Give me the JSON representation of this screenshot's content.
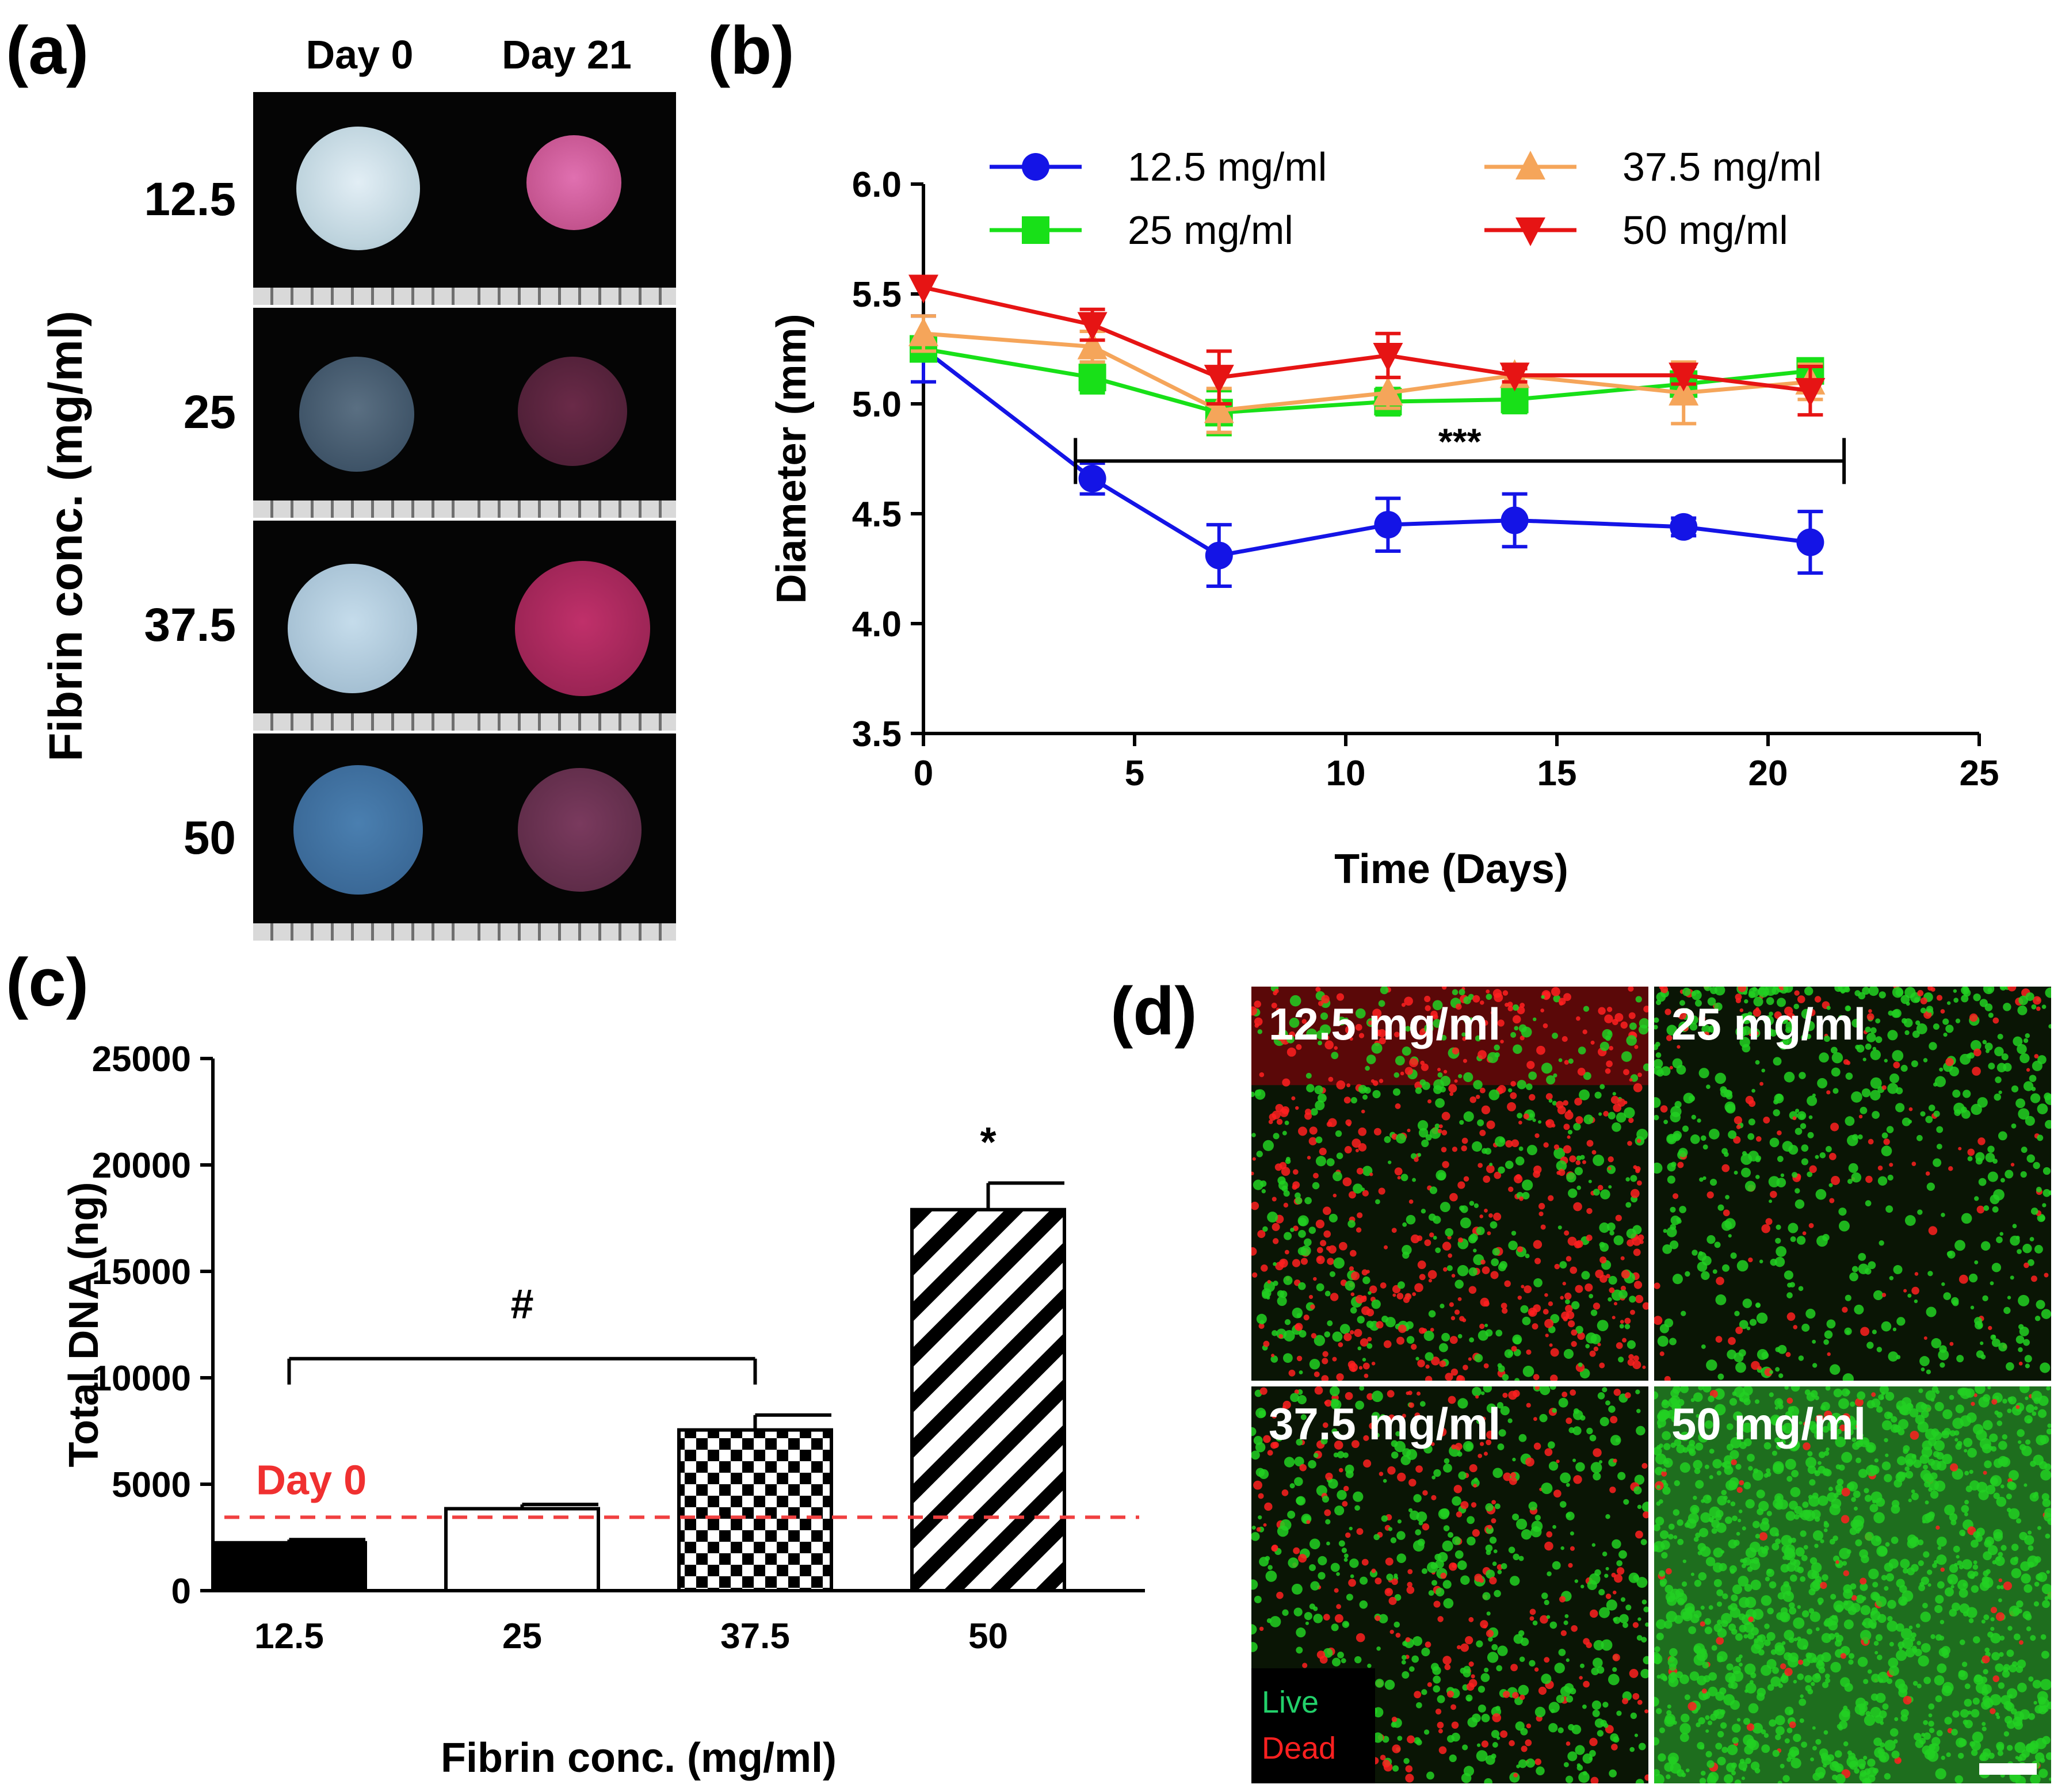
{
  "panels": {
    "a_label": "(a)",
    "b_label": "(b)",
    "c_label": "(c)",
    "d_label": "(d)"
  },
  "panel_a": {
    "col_headers": [
      "Day 0",
      "Day 21"
    ],
    "y_axis_label": "Fibrin conc. (mg/ml)",
    "rows": [
      "12.5",
      "25",
      "37.5",
      "50"
    ],
    "colors": {
      "day0_disk": "#c8d8e0",
      "day21_disk": "#c0508a",
      "background": "#050505",
      "ruler": "#d9d9d9"
    }
  },
  "panel_d": {
    "labels": [
      "12.5 mg/ml",
      "25 mg/ml",
      "37.5 mg/ml",
      "50 mg/ml"
    ],
    "legend_live": "Live",
    "legend_dead": "Dead",
    "colors": {
      "live": "#22d022",
      "dead": "#ff2020"
    }
  },
  "chart_data": [
    {
      "type": "line",
      "title": "",
      "xlabel": "Time (Days)",
      "ylabel": "Diameter (mm)",
      "xlim": [
        0,
        25
      ],
      "ylim": [
        3.5,
        6.0
      ],
      "xticks": [
        0,
        5,
        10,
        15,
        20,
        25
      ],
      "yticks": [
        "3.5",
        "4.0",
        "4.5",
        "5.0",
        "5.5",
        "6.0"
      ],
      "x": [
        0,
        4,
        7,
        11,
        14,
        18,
        21
      ],
      "series": [
        {
          "name": "12.5 mg/ml",
          "color": "#1414e6",
          "marker": "circle",
          "values": [
            5.25,
            4.66,
            4.31,
            4.45,
            4.47,
            4.44,
            4.37
          ],
          "errors": [
            0.15,
            0.07,
            0.14,
            0.12,
            0.12,
            0.04,
            0.14
          ]
        },
        {
          "name": "25 mg/ml",
          "color": "#18e018",
          "marker": "square",
          "values": [
            5.25,
            5.12,
            4.96,
            5.01,
            5.02,
            5.09,
            5.15
          ],
          "errors": [
            0.05,
            0.07,
            0.1,
            0.06,
            0.06,
            0.04,
            0.05
          ]
        },
        {
          "name": "37.5 mg/ml",
          "color": "#f5a55a",
          "marker": "triangle-up",
          "values": [
            5.32,
            5.26,
            4.97,
            5.05,
            5.13,
            5.05,
            5.1
          ],
          "errors": [
            0.08,
            0.07,
            0.1,
            0.07,
            0.05,
            0.14,
            0.08
          ]
        },
        {
          "name": "50 mg/ml",
          "color": "#e61414",
          "marker": "triangle-down",
          "values": [
            5.53,
            5.36,
            5.12,
            5.22,
            5.13,
            5.13,
            5.06
          ],
          "errors": [
            0.0,
            0.07,
            0.12,
            0.1,
            0.03,
            0.04,
            0.11
          ]
        }
      ],
      "annotation": {
        "text": "***",
        "x_start": 3.6,
        "x_end": 21.8,
        "y": 4.74
      },
      "legend": "top"
    },
    {
      "type": "bar",
      "title": "",
      "xlabel": "Fibrin conc. (mg/ml)",
      "ylabel": "Total DNA (ng)",
      "ylim": [
        0,
        25000
      ],
      "yticks": [
        "0",
        "5000",
        "10000",
        "15000",
        "20000",
        "25000"
      ],
      "categories": [
        "12.5",
        "25",
        "37.5",
        "50"
      ],
      "values": [
        2250,
        3850,
        7550,
        17900
      ],
      "errors": [
        150,
        200,
        700,
        1250
      ],
      "patterns": [
        "solid",
        "open",
        "checker",
        "diagonal"
      ],
      "reference_line": {
        "label": "Day 0",
        "value": 3450,
        "color": "#f04040"
      },
      "annotations": [
        {
          "text": "#",
          "from": "12.5",
          "to": "37.5",
          "y": 10900
        },
        {
          "text": "*",
          "at": "50",
          "y": 20400
        }
      ]
    }
  ]
}
